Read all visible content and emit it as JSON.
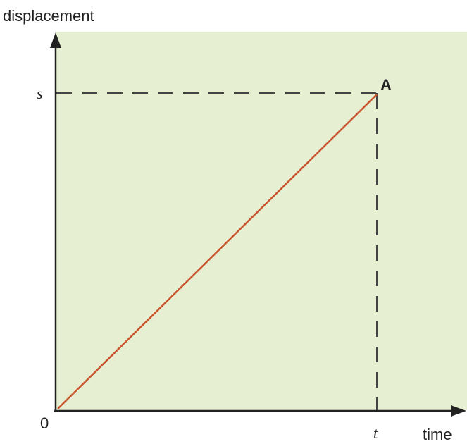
{
  "axes": {
    "y_label": "displacement",
    "x_label": "time",
    "origin": "0"
  },
  "points": {
    "s_label": "s",
    "t_label": "t",
    "point_label": "A"
  }
}
